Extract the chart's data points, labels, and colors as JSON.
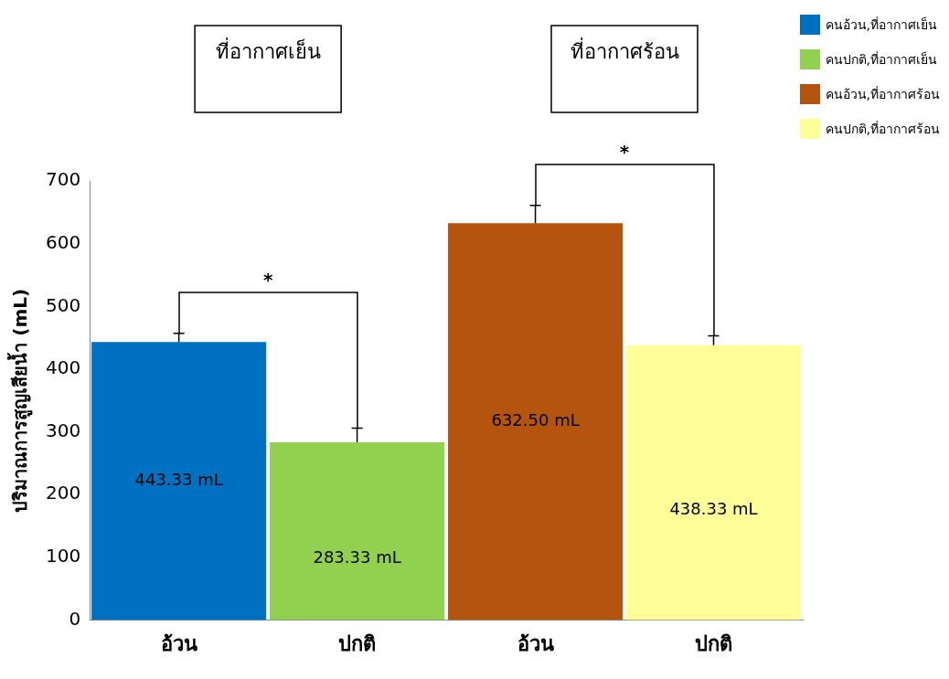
{
  "chart_data": {
    "type": "bar",
    "categories": [
      "อ้วน",
      "ปกติ",
      "อ้วน",
      "ปกติ"
    ],
    "ylabel": "ปริมาณการสูญเสียน้ำ (mL)",
    "ylim": [
      0,
      700
    ],
    "yticks": [
      0,
      100,
      200,
      300,
      400,
      500,
      600,
      700
    ],
    "grid": false,
    "legend": "top right",
    "series": [
      {
        "name": "คนอ้วน,ที่อากาศเย็น",
        "color": "#0070c0",
        "values": [
          443.33,
          null,
          null,
          null
        ],
        "errors": [
          [
            443.33,
            457
          ],
          null,
          null,
          null
        ],
        "value_labels": [
          "443.33 mL",
          null,
          null,
          null
        ]
      },
      {
        "name": "คนปกติ,ที่อากาศเย็น",
        "color": "#92d050",
        "values": [
          null,
          283.33,
          null,
          null
        ],
        "errors": [
          null,
          [
            283.33,
            306
          ],
          null,
          null
        ],
        "value_labels": [
          null,
          "283.33 mL",
          null,
          null
        ]
      },
      {
        "name": "คนอ้วน,ที่อากาศร้อน",
        "color": "#b5540f",
        "values": [
          null,
          null,
          632.5,
          null
        ],
        "errors": [
          null,
          null,
          [
            632.5,
            661
          ],
          null
        ],
        "value_labels": [
          null,
          null,
          "632.50 mL",
          null
        ]
      },
      {
        "name": "คนปกติ,ที่อากาศร้อน",
        "color": "#ffff99",
        "values": [
          null,
          null,
          null,
          438.33
        ],
        "errors": [
          null,
          null,
          null,
          [
            438.33,
            453
          ]
        ],
        "value_labels": [
          null,
          null,
          null,
          "438.33 mL"
        ]
      }
    ],
    "annotations": [
      "ที่อากาศเย็น",
      "ที่อากาศร้อน",
      "*",
      "*"
    ]
  }
}
